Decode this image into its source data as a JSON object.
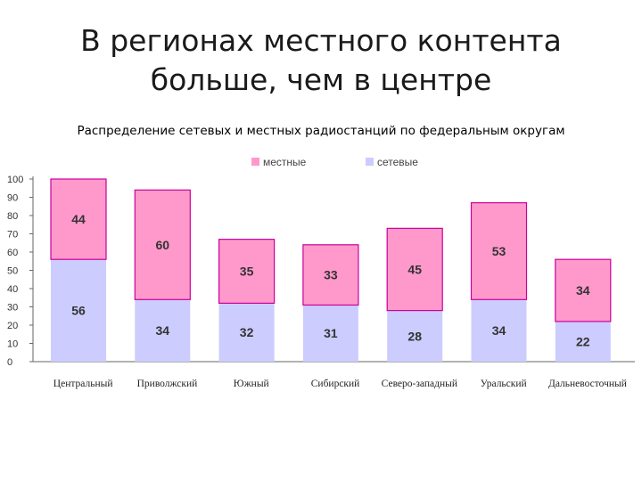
{
  "slide": {
    "title_line1": "В регионах местного контента",
    "title_line2": "больше, чем в центре",
    "subtitle": "Распределение сетевых и местных радиостанций по федеральным округам"
  },
  "colors": {
    "local": "#ff99cc",
    "local_border": "#cc0099",
    "network": "#ccccff"
  },
  "chart_data": {
    "type": "bar",
    "stacked": true,
    "categories": [
      "Центральный",
      "Приволжский",
      "Южный",
      "Сибирский",
      "Северо-западный",
      "Уральский",
      "Дальневосточный"
    ],
    "series": [
      {
        "name": "сетевые",
        "values": [
          56,
          34,
          32,
          31,
          28,
          34,
          22
        ]
      },
      {
        "name": "местные",
        "values": [
          44,
          60,
          35,
          33,
          45,
          53,
          34
        ]
      }
    ],
    "legend_order": [
      "местные",
      "сетевые"
    ],
    "y_ticks": [
      0,
      10,
      20,
      30,
      40,
      50,
      60,
      70,
      80,
      90,
      100
    ],
    "ylim": [
      0,
      100
    ],
    "legend_position": "top",
    "grid": false
  }
}
